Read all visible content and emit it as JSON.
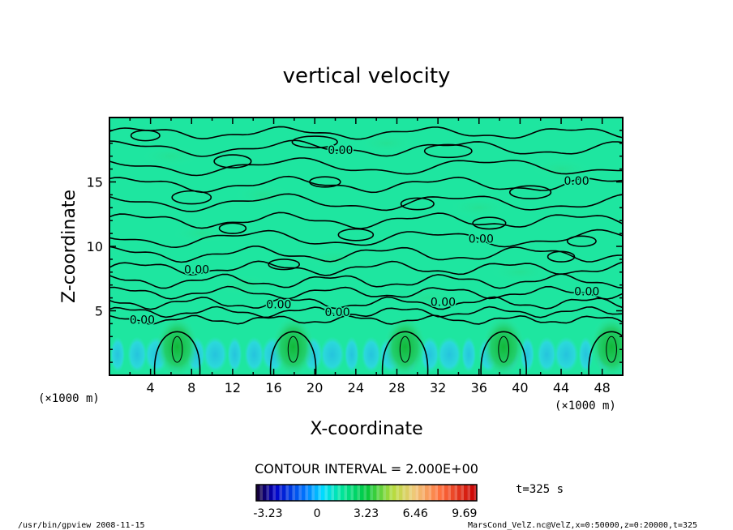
{
  "chart_data": {
    "type": "heatmap",
    "title": "vertical velocity",
    "xlabel": "X-coordinate",
    "ylabel": "Z-coordinate",
    "x_units": "(×1000 m)",
    "x_units_right": "(×1000 m)",
    "xlim": [
      0,
      50
    ],
    "ylim": [
      0,
      20
    ],
    "x_ticks": [
      "4",
      "8",
      "12",
      "16",
      "20",
      "24",
      "28",
      "32",
      "36",
      "40",
      "44",
      "48"
    ],
    "y_ticks": [
      "5",
      "10",
      "15"
    ],
    "contour_labels": [
      "0.00",
      "0.00",
      "0.00",
      "0.00",
      "0.00",
      "0.00",
      "0.00",
      "0.00",
      "0.00"
    ],
    "contour_interval_text": "CONTOUR INTERVAL = 2.000E+00",
    "colorbar": {
      "range": [
        -4.0,
        10.5
      ],
      "ticks": [
        "-3.23",
        "0",
        "3.23",
        "6.46",
        "9.69"
      ],
      "tick_values": [
        -3.23,
        0,
        3.23,
        6.46,
        9.69
      ]
    },
    "time_label": "t=325 s",
    "updraft_centers_x": [
      6.6,
      17.9,
      28.8,
      38.4,
      48.9
    ],
    "colors": {
      "background_field": "#1ee6a0",
      "positive": "#19c75a",
      "negative": "#32c8f0",
      "contour_line": "#000000"
    }
  },
  "footer": {
    "left": "/usr/bin/gpview   2008-11-15",
    "right": "MarsCond_VelZ.nc@VelZ,x=0:50000,z=0:20000,t=325"
  }
}
